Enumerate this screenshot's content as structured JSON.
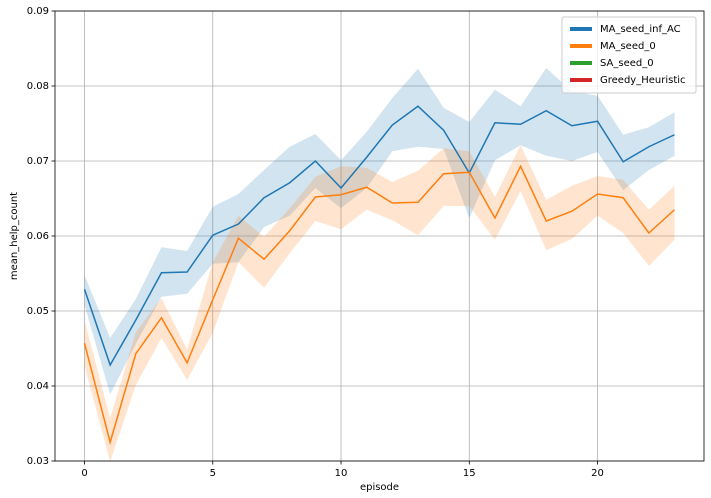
{
  "chart_data": {
    "type": "line",
    "xlabel": "episode",
    "ylabel": "mean_help_count",
    "x": [
      0,
      1,
      2,
      3,
      4,
      5,
      6,
      7,
      8,
      9,
      10,
      11,
      12,
      13,
      14,
      15,
      16,
      17,
      18,
      19,
      20,
      21,
      22,
      23
    ],
    "xlim": [
      -1.15,
      24.15
    ],
    "xticks": [
      0,
      5,
      10,
      15,
      20
    ],
    "ylim": [
      0.03,
      0.09
    ],
    "yticks": [
      0.03,
      0.04,
      0.05,
      0.06,
      0.07,
      0.08,
      0.09
    ],
    "grid": true,
    "legend": "upper right",
    "series": [
      {
        "name": "MA_seed_inf_AC",
        "color": "#1f77b4",
        "values": [
          0.0529,
          0.0428,
          0.0488,
          0.0551,
          0.0552,
          0.0601,
          0.0616,
          0.0651,
          0.0671,
          0.07,
          0.0664,
          0.0705,
          0.0748,
          0.0773,
          0.0741,
          0.0684,
          0.0751,
          0.0749,
          0.0767,
          0.0747,
          0.0753,
          0.0699,
          0.0719,
          0.0735
        ],
        "lower": [
          0.0508,
          0.0389,
          0.0456,
          0.0519,
          0.0523,
          0.0563,
          0.0565,
          0.0612,
          0.0627,
          0.0664,
          0.0637,
          0.0664,
          0.0713,
          0.0719,
          0.0716,
          0.0624,
          0.0701,
          0.0721,
          0.0707,
          0.07,
          0.0712,
          0.0661,
          0.0688,
          0.0707
        ],
        "upper": [
          0.0548,
          0.0464,
          0.0516,
          0.0585,
          0.058,
          0.0639,
          0.0656,
          0.0688,
          0.0719,
          0.0736,
          0.0701,
          0.0739,
          0.0784,
          0.0823,
          0.0771,
          0.0752,
          0.0795,
          0.0773,
          0.0824,
          0.0793,
          0.0787,
          0.0735,
          0.0745,
          0.0765
        ]
      },
      {
        "name": "MA_seed_0",
        "color": "#ff7f0e",
        "values": [
          0.0457,
          0.0325,
          0.0443,
          0.0491,
          0.0431,
          0.0515,
          0.0597,
          0.0569,
          0.0607,
          0.0652,
          0.0655,
          0.0665,
          0.0644,
          0.0645,
          0.0683,
          0.0685,
          0.0624,
          0.0693,
          0.062,
          0.0633,
          0.0656,
          0.0651,
          0.0604,
          0.0635
        ],
        "lower": [
          0.0427,
          0.0299,
          0.0401,
          0.0464,
          0.0408,
          0.0471,
          0.0565,
          0.0531,
          0.0577,
          0.062,
          0.0609,
          0.0635,
          0.0621,
          0.0601,
          0.064,
          0.064,
          0.0595,
          0.066,
          0.0581,
          0.0596,
          0.0627,
          0.0604,
          0.056,
          0.0595
        ],
        "upper": [
          0.0487,
          0.0357,
          0.0472,
          0.0517,
          0.0449,
          0.0565,
          0.0627,
          0.0599,
          0.0637,
          0.0679,
          0.0693,
          0.0691,
          0.0672,
          0.0687,
          0.0717,
          0.0713,
          0.0652,
          0.0721,
          0.0648,
          0.0667,
          0.068,
          0.0675,
          0.0635,
          0.0667
        ]
      },
      {
        "name": "SA_seed_0",
        "color": "#2ca02c"
      },
      {
        "name": "Greedy_Heuristic",
        "color": "#d62728"
      }
    ]
  }
}
